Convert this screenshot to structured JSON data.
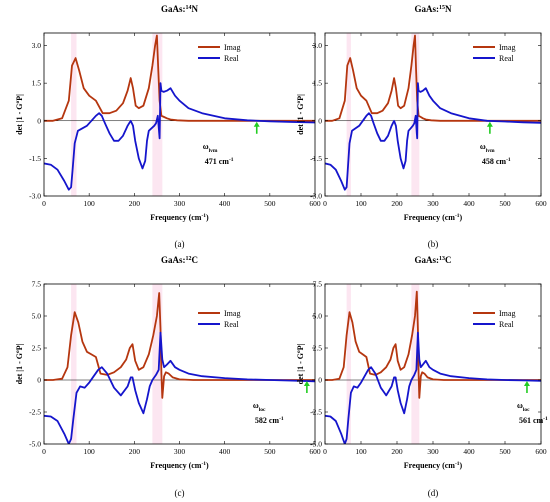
{
  "colors": {
    "imag": "#b5360f",
    "real": "#1515cc",
    "arrow": "#22cc22",
    "highlight": "#f7b8d6"
  },
  "chart_data": [
    {
      "type": "line",
      "title_main": "GaAs:",
      "title_iso": "14",
      "title_el": "N",
      "xlabel_main": "Frequency (cm",
      "xlabel_sup": "-1",
      "xlabel_tail": ")",
      "ylabel_pre": "det |1 - G",
      "ylabel_sup": "o",
      "ylabel_post": "P|",
      "xlim": [
        0,
        600
      ],
      "ylim": [
        -3.0,
        3.5
      ],
      "xticks": [
        "0",
        "100",
        "200",
        "300",
        "400",
        "500",
        "600"
      ],
      "yticks": [
        "-3.0",
        "-1.5",
        "0",
        "1.5",
        "3.0"
      ],
      "ytick_values": [
        -3.0,
        -1.5,
        0,
        1.5,
        3.0
      ],
      "legend": [
        "Imag",
        "Real"
      ],
      "series": [
        {
          "name": "Imag",
          "x": [
            0,
            20,
            40,
            55,
            62,
            70,
            78,
            88,
            100,
            115,
            130,
            145,
            160,
            175,
            185,
            192,
            197,
            203,
            210,
            220,
            232,
            240,
            246,
            250,
            253,
            256,
            260,
            266,
            272,
            280,
            295,
            320,
            360,
            420,
            500,
            600
          ],
          "y": [
            0,
            0,
            0.1,
            0.8,
            2.2,
            2.5,
            2.0,
            1.3,
            1.0,
            0.8,
            0.3,
            0.3,
            0.4,
            0.7,
            1.2,
            1.7,
            1.3,
            0.6,
            0.5,
            0.6,
            1.3,
            2.2,
            3.0,
            3.4,
            2.0,
            0.8,
            0.2,
            0.15,
            0.1,
            0.05,
            0.02,
            0,
            0,
            0,
            0,
            0
          ]
        },
        {
          "name": "Real",
          "x": [
            0,
            15,
            30,
            45,
            55,
            60,
            63,
            68,
            75,
            85,
            95,
            105,
            115,
            122,
            128,
            135,
            145,
            155,
            165,
            175,
            185,
            192,
            197,
            202,
            210,
            218,
            224,
            228,
            232,
            238,
            244,
            248,
            252,
            255,
            256,
            258,
            260,
            265,
            272,
            280,
            290,
            300,
            320,
            350,
            400,
            450,
            500,
            550,
            600
          ],
          "y": [
            -1.7,
            -1.75,
            -1.95,
            -2.4,
            -2.75,
            -2.65,
            -2.0,
            -0.9,
            -0.4,
            -0.3,
            -0.2,
            0.0,
            0.2,
            0.3,
            0.2,
            -0.1,
            -0.5,
            -0.8,
            -0.8,
            -0.6,
            -0.2,
            0.0,
            -0.2,
            -0.8,
            -1.5,
            -1.9,
            -1.6,
            -0.8,
            -0.4,
            -0.3,
            -0.2,
            -0.1,
            0.2,
            -0.5,
            -0.7,
            1.5,
            1.2,
            1.15,
            1.2,
            1.3,
            1.0,
            0.8,
            0.5,
            0.3,
            0.1,
            0.02,
            -0.02,
            -0.05,
            -0.07
          ]
        }
      ],
      "annotation": {
        "x": 471,
        "label_main": "ω",
        "label_sub": "lvm",
        "value": "471 cm",
        "value_sup": "-1"
      },
      "panel": "(a)"
    },
    {
      "type": "line",
      "title_main": "GaAs:",
      "title_iso": "15",
      "title_el": "N",
      "xlabel_main": "Frequency (cm",
      "xlabel_sup": "-1",
      "xlabel_tail": ")",
      "ylabel_pre": "det |1 - G",
      "ylabel_sup": "o",
      "ylabel_post": "P|",
      "xlim": [
        0,
        600
      ],
      "ylim": [
        -3.0,
        3.5
      ],
      "xticks": [
        "0",
        "100",
        "200",
        "300",
        "400",
        "500",
        "600"
      ],
      "yticks": [
        "-3.0",
        "-1.5",
        "0",
        "1.5",
        "3.0"
      ],
      "ytick_values": [
        -3.0,
        -1.5,
        0,
        1.5,
        3.0
      ],
      "legend": [
        "Imag",
        "Real"
      ],
      "series": [
        {
          "name": "Imag",
          "x": [
            0,
            20,
            40,
            55,
            62,
            70,
            78,
            88,
            100,
            115,
            130,
            145,
            160,
            175,
            185,
            192,
            197,
            203,
            210,
            220,
            232,
            240,
            246,
            250,
            253,
            256,
            260,
            266,
            272,
            280,
            295,
            320,
            360,
            420,
            500,
            600
          ],
          "y": [
            0,
            0,
            0.1,
            0.8,
            2.2,
            2.5,
            2.0,
            1.3,
            1.0,
            0.8,
            0.3,
            0.3,
            0.4,
            0.7,
            1.2,
            1.7,
            1.3,
            0.6,
            0.5,
            0.6,
            1.3,
            2.2,
            3.0,
            3.4,
            2.0,
            0.8,
            0.2,
            0.15,
            0.1,
            0.05,
            0.02,
            0,
            0,
            0,
            0,
            0
          ]
        },
        {
          "name": "Real",
          "x": [
            0,
            15,
            30,
            45,
            55,
            60,
            63,
            68,
            75,
            85,
            95,
            105,
            115,
            122,
            128,
            135,
            145,
            155,
            165,
            175,
            185,
            192,
            197,
            202,
            210,
            218,
            224,
            228,
            232,
            238,
            244,
            248,
            252,
            255,
            256,
            258,
            260,
            265,
            272,
            280,
            290,
            300,
            320,
            350,
            400,
            450,
            500,
            550,
            600
          ],
          "y": [
            -1.7,
            -1.75,
            -1.95,
            -2.4,
            -2.75,
            -2.65,
            -2.0,
            -0.9,
            -0.4,
            -0.3,
            -0.2,
            0.0,
            0.2,
            0.3,
            0.2,
            -0.1,
            -0.5,
            -0.8,
            -0.8,
            -0.6,
            -0.2,
            0.0,
            -0.2,
            -0.8,
            -1.5,
            -1.9,
            -1.6,
            -0.8,
            -0.4,
            -0.3,
            -0.2,
            -0.1,
            0.2,
            -0.5,
            -0.7,
            1.5,
            1.2,
            1.15,
            1.2,
            1.3,
            1.0,
            0.8,
            0.5,
            0.3,
            0.1,
            0.0,
            -0.03,
            -0.06,
            -0.08
          ]
        }
      ],
      "annotation": {
        "x": 458,
        "label_main": "ω",
        "label_sub": "lvm",
        "value": "458 cm",
        "value_sup": "-1"
      },
      "panel": "(b)"
    },
    {
      "type": "line",
      "title_main": "GaAs:",
      "title_iso": "12",
      "title_el": "C",
      "xlabel_main": "Frequency (cm",
      "xlabel_sup": "-1",
      "xlabel_tail": ")",
      "ylabel_pre": "det |1 - G",
      "ylabel_sup": "o",
      "ylabel_post": "P|",
      "xlim": [
        0,
        600
      ],
      "ylim": [
        -5.0,
        7.5
      ],
      "xticks": [
        "0",
        "100",
        "200",
        "300",
        "400",
        "500",
        "600"
      ],
      "yticks": [
        "-5.0",
        "-2.5",
        "0",
        "2.5",
        "5.0",
        "7.5"
      ],
      "ytick_values": [
        -5.0,
        -2.5,
        0,
        2.5,
        5.0,
        7.5
      ],
      "legend": [
        "Imag",
        "Real"
      ],
      "series": [
        {
          "name": "Imag",
          "x": [
            0,
            20,
            40,
            52,
            60,
            68,
            76,
            85,
            95,
            105,
            115,
            125,
            140,
            155,
            170,
            182,
            190,
            196,
            202,
            210,
            220,
            232,
            242,
            250,
            255,
            258,
            260,
            262,
            266,
            270,
            276,
            285,
            300,
            330,
            380,
            450,
            600
          ],
          "y": [
            0,
            0,
            0.1,
            1.0,
            3.5,
            5.3,
            4.5,
            3.0,
            2.2,
            2.0,
            1.8,
            0.5,
            0.4,
            0.6,
            1.0,
            1.6,
            2.5,
            2.8,
            1.5,
            0.8,
            1.0,
            2.0,
            3.5,
            5.0,
            6.8,
            4.0,
            0.5,
            -1.4,
            0.3,
            0.6,
            0.5,
            0.2,
            0.05,
            0,
            0,
            0,
            0
          ]
        },
        {
          "name": "Real",
          "x": [
            0,
            15,
            30,
            45,
            55,
            60,
            65,
            72,
            80,
            90,
            100,
            110,
            120,
            128,
            140,
            155,
            170,
            185,
            192,
            196,
            202,
            210,
            220,
            228,
            234,
            240,
            248,
            254,
            258,
            262,
            266,
            272,
            280,
            290,
            300,
            320,
            350,
            400,
            450,
            500,
            550,
            600
          ],
          "y": [
            -2.8,
            -2.85,
            -3.2,
            -4.2,
            -5.0,
            -4.6,
            -3.0,
            -1.0,
            -0.5,
            -0.6,
            -0.2,
            0.3,
            0.8,
            1.0,
            0.5,
            -0.6,
            -1.2,
            -0.5,
            0.2,
            0.2,
            -0.8,
            -1.8,
            -2.6,
            -1.5,
            -0.5,
            0.0,
            0.4,
            0.8,
            3.7,
            1.6,
            1.0,
            1.2,
            1.5,
            1.0,
            0.8,
            0.5,
            0.3,
            0.15,
            0.05,
            0.0,
            -0.05,
            -0.1
          ]
        }
      ],
      "annotation": {
        "x": 582,
        "label_main": "ω",
        "label_sub": "loc",
        "value": "582 cm",
        "value_sup": "-1"
      },
      "panel": "(c)"
    },
    {
      "type": "line",
      "title_main": "GaAs:",
      "title_iso": "13",
      "title_el": "C",
      "xlabel_main": "Frequency (cm",
      "xlabel_sup": "-1",
      "xlabel_tail": ")",
      "ylabel_pre": "det |1 - G",
      "ylabel_sup": "o",
      "ylabel_post": "P|",
      "xlim": [
        0,
        600
      ],
      "ylim": [
        -5.0,
        7.5
      ],
      "xticks": [
        "0",
        "100",
        "200",
        "300",
        "400",
        "500",
        "600"
      ],
      "yticks": [
        "-5.0",
        "-2.5",
        "0",
        "2.5",
        "5.0",
        "7.5"
      ],
      "ytick_values": [
        -5.0,
        -2.5,
        0,
        2.5,
        5.0,
        7.5
      ],
      "legend": [
        "Imag",
        "Real"
      ],
      "series": [
        {
          "name": "Imag",
          "x": [
            0,
            20,
            40,
            52,
            60,
            68,
            76,
            85,
            95,
            105,
            115,
            125,
            140,
            155,
            170,
            182,
            190,
            196,
            202,
            210,
            220,
            232,
            242,
            250,
            255,
            258,
            260,
            262,
            266,
            270,
            276,
            285,
            300,
            330,
            380,
            450,
            600
          ],
          "y": [
            0,
            0,
            0.1,
            1.0,
            3.5,
            5.3,
            4.5,
            3.0,
            2.2,
            2.0,
            1.8,
            0.5,
            0.4,
            0.6,
            1.0,
            1.6,
            2.5,
            2.8,
            1.5,
            0.8,
            1.0,
            2.0,
            3.5,
            5.0,
            6.9,
            4.0,
            0.5,
            -1.4,
            0.3,
            0.6,
            0.5,
            0.2,
            0.05,
            0,
            0,
            0,
            0
          ]
        },
        {
          "name": "Real",
          "x": [
            0,
            15,
            30,
            45,
            55,
            60,
            65,
            72,
            80,
            90,
            100,
            110,
            120,
            128,
            140,
            155,
            170,
            185,
            192,
            196,
            202,
            210,
            220,
            228,
            234,
            240,
            248,
            254,
            258,
            262,
            266,
            272,
            280,
            290,
            300,
            320,
            350,
            400,
            450,
            500,
            550,
            600
          ],
          "y": [
            -2.8,
            -2.85,
            -3.2,
            -4.2,
            -5.0,
            -4.6,
            -3.0,
            -1.0,
            -0.5,
            -0.6,
            -0.2,
            0.3,
            0.8,
            1.0,
            0.5,
            -0.6,
            -1.2,
            -0.5,
            0.2,
            0.2,
            -0.8,
            -1.8,
            -2.6,
            -1.5,
            -0.5,
            0.0,
            0.4,
            0.8,
            3.7,
            1.6,
            1.0,
            1.2,
            1.5,
            1.0,
            0.8,
            0.5,
            0.3,
            0.15,
            0.05,
            0.0,
            -0.03,
            -0.06
          ]
        }
      ],
      "annotation": {
        "x": 561,
        "label_main": "ω",
        "label_sub": "loc",
        "value": "561 cm",
        "value_sup": "-1"
      },
      "panel": "(d)"
    }
  ]
}
